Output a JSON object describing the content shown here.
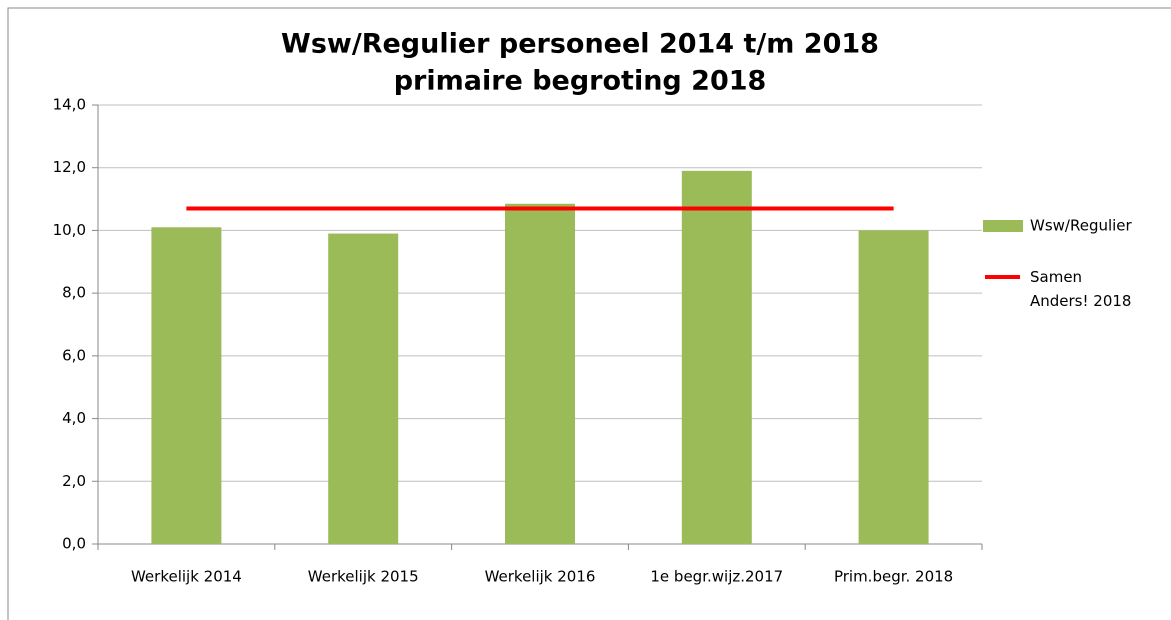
{
  "chart_data": {
    "type": "bar",
    "title": [
      "Wsw/Regulier personeel 2014 t/m 2018",
      "primaire begroting 2018"
    ],
    "categories": [
      "Werkelijk 2014",
      "Werkelijk 2015",
      "Werkelijk 2016",
      "1e begr.wijz.2017",
      "Prim.begr. 2018"
    ],
    "series": [
      {
        "name": "Wsw/Regulier",
        "type": "bar",
        "color": "#9bbb59",
        "values": [
          10.1,
          9.9,
          10.85,
          11.9,
          10.0
        ]
      },
      {
        "name": "Samen Anders! 2018",
        "type": "line",
        "color": "#ff0000",
        "values": [
          10.7,
          10.7,
          10.7,
          10.7,
          10.7
        ]
      }
    ],
    "ylim": [
      0,
      14
    ],
    "yticks": [
      {
        "value": 0,
        "label": "0,0"
      },
      {
        "value": 2,
        "label": "2,0"
      },
      {
        "value": 4,
        "label": "4,0"
      },
      {
        "value": 6,
        "label": "6,0"
      },
      {
        "value": 8,
        "label": "8,0"
      },
      {
        "value": 10,
        "label": "10,0"
      },
      {
        "value": 12,
        "label": "12,0"
      },
      {
        "value": 14,
        "label": "14,0"
      }
    ],
    "grid": true,
    "legend": "right"
  }
}
